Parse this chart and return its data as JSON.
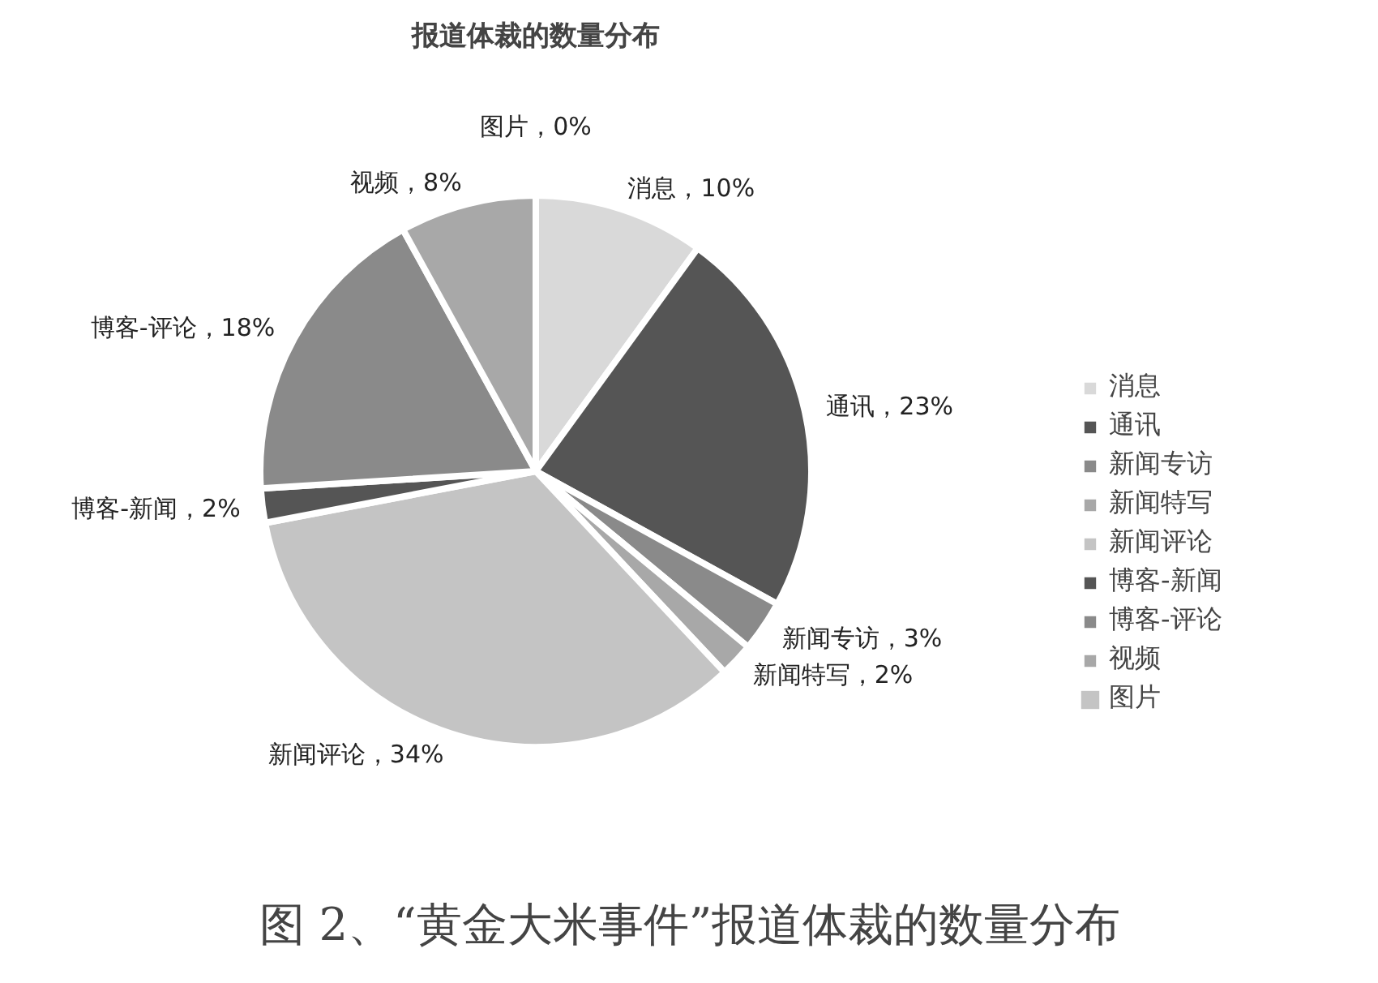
{
  "chart_data": {
    "type": "pie",
    "title": "报道体裁的数量分布",
    "categories": [
      "消息",
      "通讯",
      "新闻专访",
      "新闻特写",
      "新闻评论",
      "博客-新闻",
      "博客-评论",
      "视频",
      "图片"
    ],
    "values": [
      10,
      23,
      3,
      2,
      34,
      2,
      18,
      8,
      0
    ],
    "colors": [
      "#d9d9d9",
      "#555555",
      "#8a8a8a",
      "#a8a8a8",
      "#c4c4c4",
      "#555555",
      "#8a8a8a",
      "#a8a8a8",
      "#c4c4c4"
    ],
    "value_labels": [
      "消息，10%",
      "通讯，23%",
      "新闻专访，3%",
      "新闻特写，2%",
      "新闻评论，34%",
      "博客-新闻，2%",
      "博客-评论，18%",
      "视频，8%",
      "图片，0%"
    ],
    "legend": "right",
    "annotations": [
      "图 2、“黄金大米事件”报道体裁的数量分布"
    ]
  }
}
